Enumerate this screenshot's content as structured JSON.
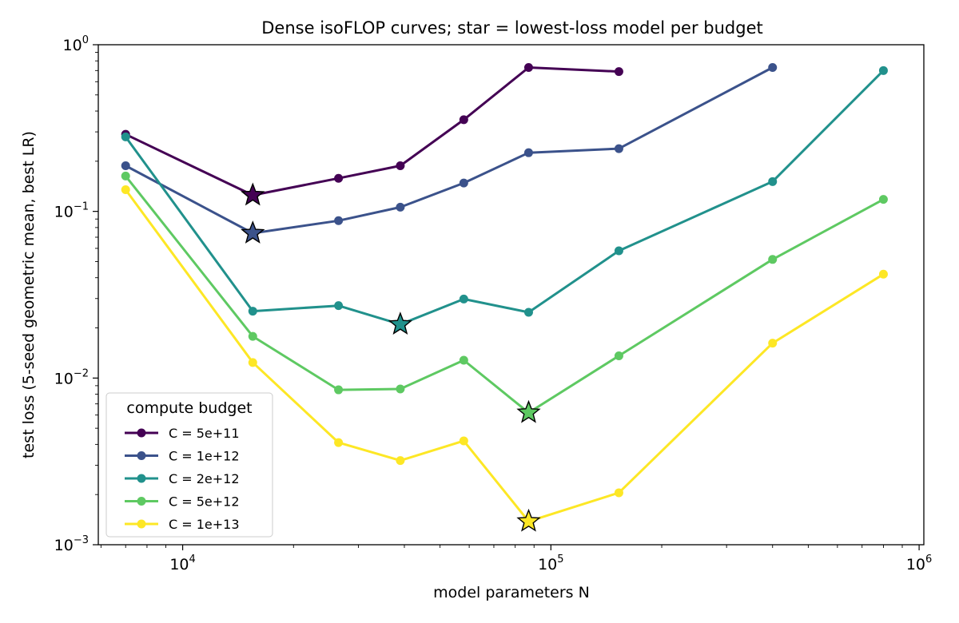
{
  "chart_data": {
    "type": "line",
    "title": "Dense isoFLOP curves; star = lowest-loss model per budget",
    "xlabel": "model parameters N",
    "ylabel": "test loss (5-seed geometric mean, best LR)",
    "xscale": "log",
    "yscale": "log",
    "xlim": [
      5900,
      1030000
    ],
    "ylim": [
      0.001,
      1.0
    ],
    "x_major_ticks": [
      {
        "value": 10000,
        "base": "10",
        "exp": "4"
      },
      {
        "value": 100000,
        "base": "10",
        "exp": "5"
      },
      {
        "value": 1000000,
        "base": "10",
        "exp": "6"
      }
    ],
    "y_major_ticks": [
      {
        "value": 1.0,
        "base": "10",
        "exp": "0"
      },
      {
        "value": 0.1,
        "base": "10",
        "exp": "−1"
      },
      {
        "value": 0.01,
        "base": "10",
        "exp": "−2"
      },
      {
        "value": 0.001,
        "base": "10",
        "exp": "−3"
      }
    ],
    "grid": false,
    "legend": {
      "title": "compute budget",
      "position": "lower-left"
    },
    "series": [
      {
        "name": "C = 5e+11",
        "color": "#440154",
        "x": [
          7000,
          15500,
          26500,
          39000,
          58000,
          87000,
          153000
        ],
        "y": [
          0.29,
          0.125,
          0.158,
          0.188,
          0.355,
          0.73,
          0.69
        ],
        "optimum": {
          "x": 15500,
          "y": 0.125
        }
      },
      {
        "name": "C = 1e+12",
        "color": "#3b528b",
        "x": [
          7000,
          15500,
          26500,
          39000,
          58000,
          87000,
          153000,
          400000
        ],
        "y": [
          0.188,
          0.074,
          0.088,
          0.106,
          0.148,
          0.225,
          0.238,
          0.73
        ],
        "optimum": {
          "x": 15500,
          "y": 0.074
        }
      },
      {
        "name": "C = 2e+12",
        "color": "#21918c",
        "x": [
          7000,
          15500,
          26500,
          39000,
          58000,
          87000,
          153000,
          400000,
          800000
        ],
        "y": [
          0.28,
          0.0252,
          0.0272,
          0.021,
          0.0298,
          0.0248,
          0.058,
          0.151,
          0.7
        ],
        "optimum": {
          "x": 39000,
          "y": 0.021
        }
      },
      {
        "name": "C = 5e+12",
        "color": "#5ec962",
        "x": [
          7000,
          15500,
          26500,
          39000,
          58000,
          87000,
          153000,
          400000,
          800000
        ],
        "y": [
          0.163,
          0.0178,
          0.0085,
          0.0086,
          0.0128,
          0.0062,
          0.0136,
          0.0515,
          0.118
        ],
        "optimum": {
          "x": 87000,
          "y": 0.0062
        }
      },
      {
        "name": "C = 1e+13",
        "color": "#fde725",
        "x": [
          7000,
          15500,
          26500,
          39000,
          58000,
          87000,
          153000,
          400000,
          800000
        ],
        "y": [
          0.135,
          0.0124,
          0.0041,
          0.0032,
          0.0042,
          0.00138,
          0.00205,
          0.0162,
          0.042
        ],
        "optimum": {
          "x": 87000,
          "y": 0.00138
        }
      }
    ]
  }
}
